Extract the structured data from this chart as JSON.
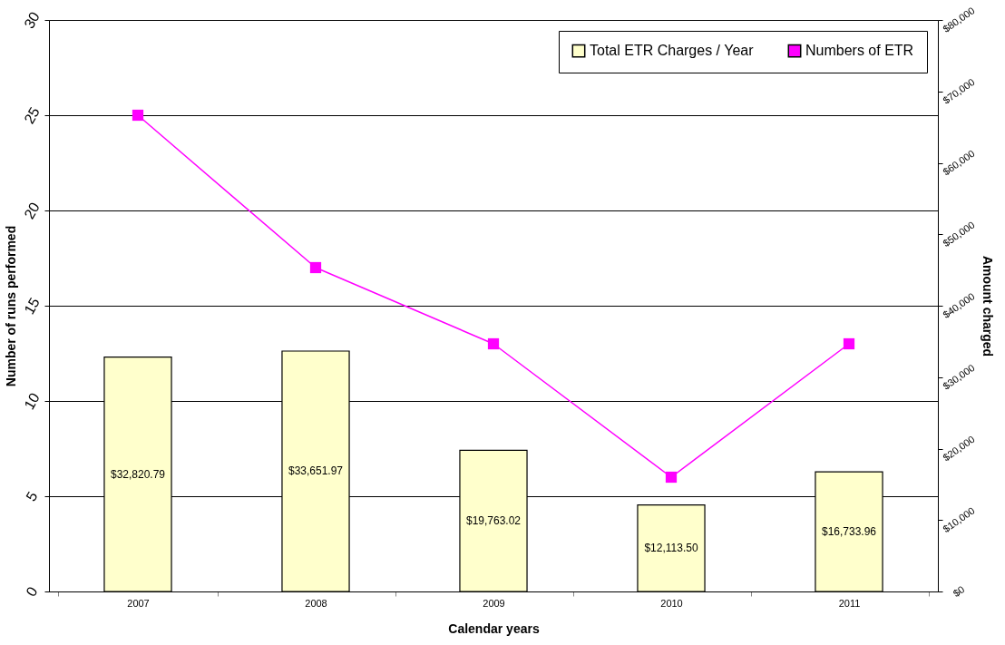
{
  "chart_data": {
    "type": "bar",
    "xlabel": "Calendar years",
    "ylabel": "Number of runs  performed",
    "y2label": "Amount  charged",
    "categories": [
      "2007",
      "2008",
      "2009",
      "2010",
      "2011"
    ],
    "series": [
      {
        "name": "Total  ETR Charges / Year",
        "axis": "y2",
        "color": "#ffffcc",
        "values": [
          32820.79,
          33651.97,
          19763.02,
          12113.5,
          16733.96
        ],
        "value_labels": [
          "$32,820.79",
          "$33,651.97",
          "$19,763.02",
          "$12,113.50",
          "$16,733.96"
        ]
      },
      {
        "name": "Numbers of ETR",
        "type": "line",
        "axis": "y",
        "color": "#ff00ff",
        "marker": "square",
        "values": [
          25,
          17,
          13,
          6,
          13
        ]
      }
    ],
    "ylim": [
      0,
      30
    ],
    "yticks": [
      0,
      5,
      10,
      15,
      20,
      25,
      30
    ],
    "y2lim": [
      0,
      80000
    ],
    "y2ticks": [
      {
        "value": 0,
        "label": "$0"
      },
      {
        "value": 10000,
        "label": "$10,000"
      },
      {
        "value": 20000,
        "label": "$20,000"
      },
      {
        "value": 30000,
        "label": "$30,000"
      },
      {
        "value": 40000,
        "label": "$40,000"
      },
      {
        "value": 50000,
        "label": "$50,000"
      },
      {
        "value": 60000,
        "label": "$60,000"
      },
      {
        "value": 70000,
        "label": "$70,000"
      },
      {
        "value": 80000,
        "label": "$80,000"
      }
    ],
    "grid": "y",
    "legend": "top right"
  }
}
